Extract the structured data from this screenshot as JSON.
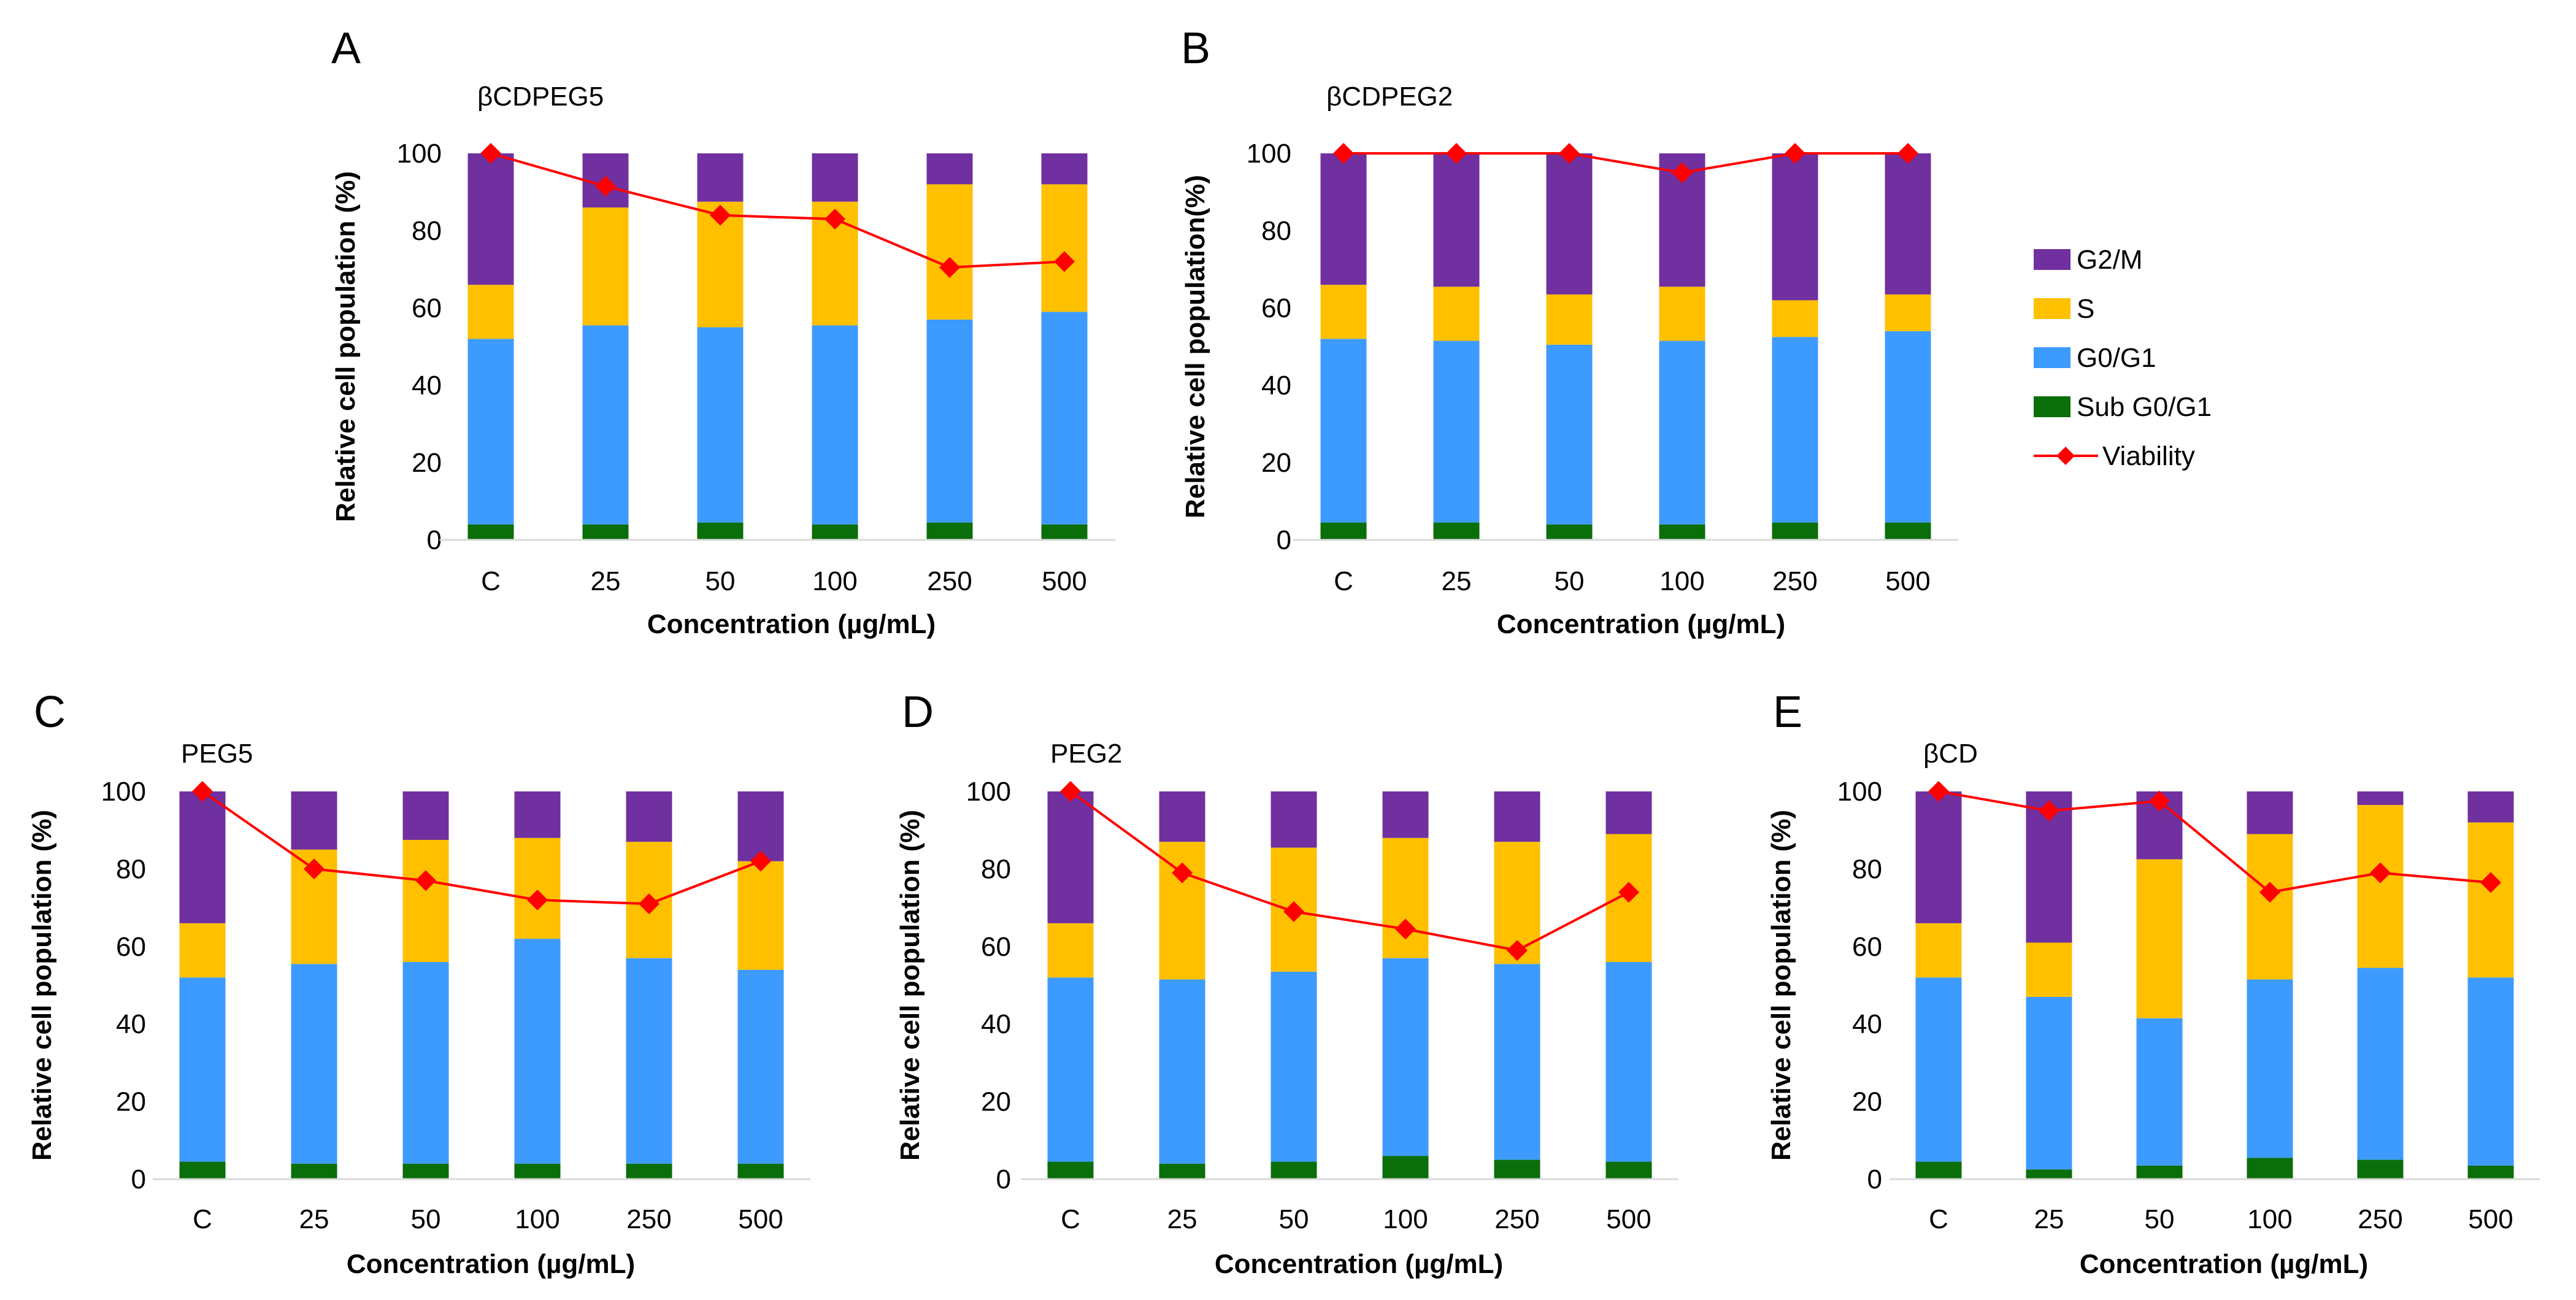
{
  "legend": {
    "items": [
      {
        "key": "g2m",
        "label": "G2/M",
        "color": "#7030a0"
      },
      {
        "key": "s",
        "label": "S",
        "color": "#ffc000"
      },
      {
        "key": "g0g1",
        "label": "G0/G1",
        "color": "#3d9bff"
      },
      {
        "key": "subg0",
        "label": "Sub G0/G1",
        "color": "#0a6e0a"
      },
      {
        "key": "viability",
        "label": "Viability",
        "color": "#ff0000"
      }
    ]
  },
  "chart_data": [
    {
      "panel": "A",
      "type": "bar",
      "stacked": true,
      "title": "βCDPEG5",
      "xlabel": "Concentration (µg/mL)",
      "ylabel": "Relative cell population (%)",
      "ylim": [
        0,
        100
      ],
      "yticks": [
        "0",
        "20",
        "40",
        "60",
        "80",
        "100"
      ],
      "categories": [
        "C",
        "25",
        "50",
        "100",
        "250",
        "500"
      ],
      "series": [
        {
          "name": "Sub G0/G1",
          "values": [
            4,
            4,
            4.5,
            4,
            4.5,
            4
          ]
        },
        {
          "name": "G0/G1",
          "values": [
            48,
            51.5,
            50.5,
            51.5,
            52.5,
            55
          ]
        },
        {
          "name": "S",
          "values": [
            14,
            30.5,
            32.5,
            32,
            35,
            33
          ]
        },
        {
          "name": "G2/M",
          "values": [
            34,
            14,
            12.5,
            12.5,
            8,
            8
          ]
        }
      ],
      "line": {
        "name": "Viability",
        "values": [
          100,
          91.5,
          84,
          83,
          70.5,
          72
        ]
      }
    },
    {
      "panel": "B",
      "type": "bar",
      "stacked": true,
      "title": "βCDPEG2",
      "xlabel": "Concentration (µg/mL)",
      "ylabel": "Relative cell population(%)",
      "ylim": [
        0,
        100
      ],
      "yticks": [
        "0",
        "20",
        "40",
        "60",
        "80",
        "100"
      ],
      "categories": [
        "C",
        "25",
        "50",
        "100",
        "250",
        "500"
      ],
      "series": [
        {
          "name": "Sub G0/G1",
          "values": [
            4.5,
            4.5,
            4,
            4,
            4.5,
            4.5
          ]
        },
        {
          "name": "G0/G1",
          "values": [
            47.5,
            47,
            46.5,
            47.5,
            48,
            49.5
          ]
        },
        {
          "name": "S",
          "values": [
            14,
            14,
            13,
            14,
            9.5,
            9.5
          ]
        },
        {
          "name": "G2/M",
          "values": [
            34,
            34.5,
            36.5,
            34.5,
            38,
            36.5
          ]
        }
      ],
      "line": {
        "name": "Viability",
        "values": [
          100,
          100,
          100,
          95,
          100,
          100
        ]
      }
    },
    {
      "panel": "C",
      "type": "bar",
      "stacked": true,
      "title": "PEG5",
      "xlabel": "Concentration (µg/mL)",
      "ylabel": "Relative cell population (%)",
      "ylim": [
        0,
        100
      ],
      "yticks": [
        "0",
        "20",
        "40",
        "60",
        "80",
        "100"
      ],
      "categories": [
        "C",
        "25",
        "50",
        "100",
        "250",
        "500"
      ],
      "series": [
        {
          "name": "Sub G0/G1",
          "values": [
            4.5,
            4,
            4,
            4,
            4,
            4
          ]
        },
        {
          "name": "G0/G1",
          "values": [
            47.5,
            51.5,
            52,
            58,
            53,
            50
          ]
        },
        {
          "name": "S",
          "values": [
            14,
            29.5,
            31.5,
            26,
            30,
            28
          ]
        },
        {
          "name": "G2/M",
          "values": [
            34,
            15,
            12.5,
            12,
            13,
            18
          ]
        }
      ],
      "line": {
        "name": "Viability",
        "values": [
          100,
          80,
          77,
          72,
          71,
          82
        ]
      }
    },
    {
      "panel": "D",
      "type": "bar",
      "stacked": true,
      "title": "PEG2",
      "xlabel": "Concentration (µg/mL)",
      "ylabel": "Relative cell population (%)",
      "ylim": [
        0,
        100
      ],
      "yticks": [
        "0",
        "20",
        "40",
        "60",
        "80",
        "100"
      ],
      "categories": [
        "C",
        "25",
        "50",
        "100",
        "250",
        "500"
      ],
      "series": [
        {
          "name": "Sub G0/G1",
          "values": [
            4.5,
            4,
            4.5,
            6,
            5,
            4.5
          ]
        },
        {
          "name": "G0/G1",
          "values": [
            47.5,
            47.5,
            49,
            51,
            50.5,
            51.5
          ]
        },
        {
          "name": "S",
          "values": [
            14,
            35.5,
            32,
            31,
            31.5,
            33
          ]
        },
        {
          "name": "G2/M",
          "values": [
            34,
            13,
            14.5,
            12,
            13,
            11
          ]
        }
      ],
      "line": {
        "name": "Viability",
        "values": [
          100,
          79,
          69,
          64.5,
          59,
          74
        ]
      }
    },
    {
      "panel": "E",
      "type": "bar",
      "stacked": true,
      "title": "βCD",
      "xlabel": "Concentration (µg/mL)",
      "ylabel": "Relative cell population (%)",
      "ylim": [
        0,
        100
      ],
      "yticks": [
        "0",
        "20",
        "40",
        "60",
        "80",
        "100"
      ],
      "categories": [
        "C",
        "25",
        "50",
        "100",
        "250",
        "500"
      ],
      "series": [
        {
          "name": "Sub G0/G1",
          "values": [
            4.5,
            2.5,
            3.5,
            5.5,
            5,
            3.5
          ]
        },
        {
          "name": "G0/G1",
          "values": [
            47.5,
            44.5,
            38,
            46,
            49.5,
            48.5
          ]
        },
        {
          "name": "S",
          "values": [
            14,
            14,
            41,
            37.5,
            42,
            40
          ]
        },
        {
          "name": "G2/M",
          "values": [
            34,
            39,
            17.5,
            11,
            3.5,
            8
          ]
        }
      ],
      "line": {
        "name": "Viability",
        "values": [
          100,
          95,
          97.5,
          74,
          79,
          76.5
        ]
      }
    }
  ]
}
